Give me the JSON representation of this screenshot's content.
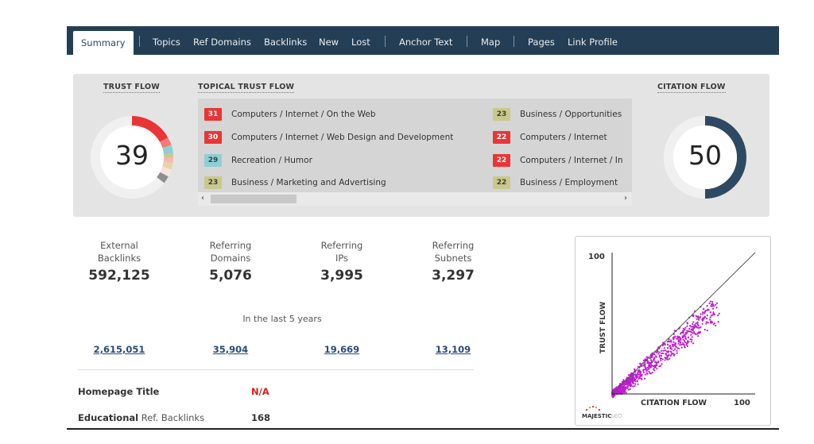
{
  "nav": {
    "tabs": [
      {
        "label": "Summary"
      },
      {
        "label": "Topics"
      },
      {
        "label": "Ref Domains"
      },
      {
        "label": "Backlinks"
      },
      {
        "label": "New"
      },
      {
        "label": "Lost"
      },
      {
        "label": "Anchor Text"
      },
      {
        "label": "Map"
      },
      {
        "label": "Pages"
      },
      {
        "label": "Link Profile"
      }
    ],
    "active_tab": "Summary"
  },
  "trust_flow": {
    "title": "TRUST FLOW",
    "value": "39"
  },
  "topical_trust_flow": {
    "title": "TOPICAL TRUST FLOW",
    "topics": [
      {
        "score": "31",
        "label": "Computers / Internet / On the Web",
        "color": "red"
      },
      {
        "score": "30",
        "label": "Computers / Internet / Web Design and Development",
        "color": "red"
      },
      {
        "score": "29",
        "label": "Recreation / Humor",
        "color": "teal"
      },
      {
        "score": "23",
        "label": "Business / Marketing and Advertising",
        "color": "olive"
      },
      {
        "score": "23",
        "label": "Business / Opportunities",
        "color": "olive"
      },
      {
        "score": "22",
        "label": "Computers / Internet",
        "color": "red"
      },
      {
        "score": "22",
        "label": "Computers / Internet / In",
        "color": "red"
      },
      {
        "score": "22",
        "label": "Business / Employment",
        "color": "olive"
      }
    ],
    "scroll_left": "‹",
    "scroll_right": "›"
  },
  "citation_flow": {
    "title": "CITATION FLOW",
    "value": "50",
    "fill_fraction": 0.5
  },
  "stats": [
    {
      "label_line1": "External",
      "label_line2": "Backlinks",
      "value": "592,125",
      "recent": "2,615,051"
    },
    {
      "label_line1": "Referring",
      "label_line2": "Domains",
      "value": "5,076",
      "recent": "35,904"
    },
    {
      "label_line1": "Referring",
      "label_line2": "IPs",
      "value": "3,995",
      "recent": "19,669"
    },
    {
      "label_line1": "Referring",
      "label_line2": "Subnets",
      "value": "3,297",
      "recent": "13,109"
    }
  ],
  "period_label": "In the last 5 years",
  "homepage_title": {
    "label": "Homepage Title",
    "value": "N/A"
  },
  "educational": {
    "label_bold": "Educational",
    "label_rest": " Ref. Backlinks",
    "value": "168"
  },
  "scatter": {
    "y_axis_label": "TRUST FLOW",
    "x_axis_label": "CITATION FLOW",
    "y_max_label": "100",
    "x_max_label": "100",
    "logo_text": "MAJESTIC",
    "logo_suffix": "SEO"
  },
  "colors": {
    "nav_bg": "#243e55",
    "trust_red": "#e93535",
    "citation_navy": "#2d4a62",
    "scatter_magenta": "#c21bd0",
    "na_red": "#d9201f"
  }
}
